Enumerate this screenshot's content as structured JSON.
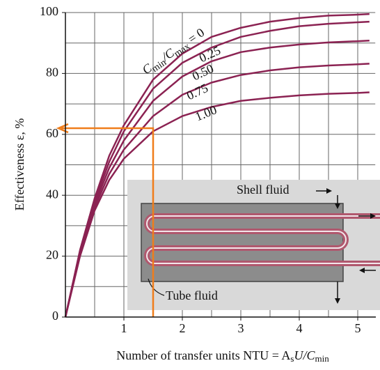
{
  "chart_data": {
    "type": "line",
    "x": [
      0,
      0.25,
      0.5,
      0.75,
      1,
      1.5,
      2,
      2.5,
      3,
      3.5,
      4,
      4.5,
      5,
      5.2
    ],
    "series": [
      {
        "name": "0",
        "color": "#8b2252",
        "values": [
          0,
          22,
          39,
          53,
          63,
          78,
          86.5,
          92,
          95,
          97,
          98.2,
          99,
          99.3,
          99.5
        ]
      },
      {
        "name": "0.25",
        "color": "#8b2252",
        "values": [
          0,
          21.5,
          38,
          51,
          61,
          75,
          83.5,
          88.5,
          92,
          94,
          95.5,
          96.3,
          96.8,
          97
        ]
      },
      {
        "name": "0.50",
        "color": "#8b2252",
        "values": [
          0,
          21,
          37,
          49,
          58,
          71,
          79,
          84,
          87,
          88.5,
          89.5,
          90.2,
          90.6,
          90.8
        ]
      },
      {
        "name": "0.75",
        "color": "#8b2252",
        "values": [
          0,
          20.5,
          36,
          47,
          55,
          66,
          73,
          77,
          79.5,
          81,
          82,
          82.6,
          83,
          83.2
        ]
      },
      {
        "name": "1.00",
        "color": "#8b2252",
        "values": [
          0,
          20,
          35,
          45,
          52,
          61,
          66,
          69,
          71,
          72,
          72.8,
          73.3,
          73.6,
          73.8
        ]
      }
    ],
    "ratio_label": [
      "C",
      "min",
      "/C",
      "max",
      " = "
    ],
    "xlabel": [
      "Number of transfer units NTU = A",
      "s",
      "U/C",
      "min"
    ],
    "ylabel": "Effectiveness ε, %",
    "xlim": [
      0,
      5.3
    ],
    "ylim": [
      0,
      100
    ],
    "xticks": [
      1,
      2,
      3,
      4,
      5
    ],
    "yticks": [
      0,
      20,
      40,
      60,
      80,
      100
    ],
    "xgrid": [
      0.5,
      1,
      1.5,
      2,
      2.5,
      3,
      3.5,
      4,
      4.5,
      5
    ],
    "ygrid": [
      10,
      20,
      30,
      40,
      50,
      60,
      70,
      80,
      90,
      100
    ],
    "guide": {
      "x": 1.5,
      "y": 62,
      "color": "#f07d1a"
    },
    "inset": {
      "shell_label": "Shell fluid",
      "tube_label": "Tube fluid"
    }
  }
}
